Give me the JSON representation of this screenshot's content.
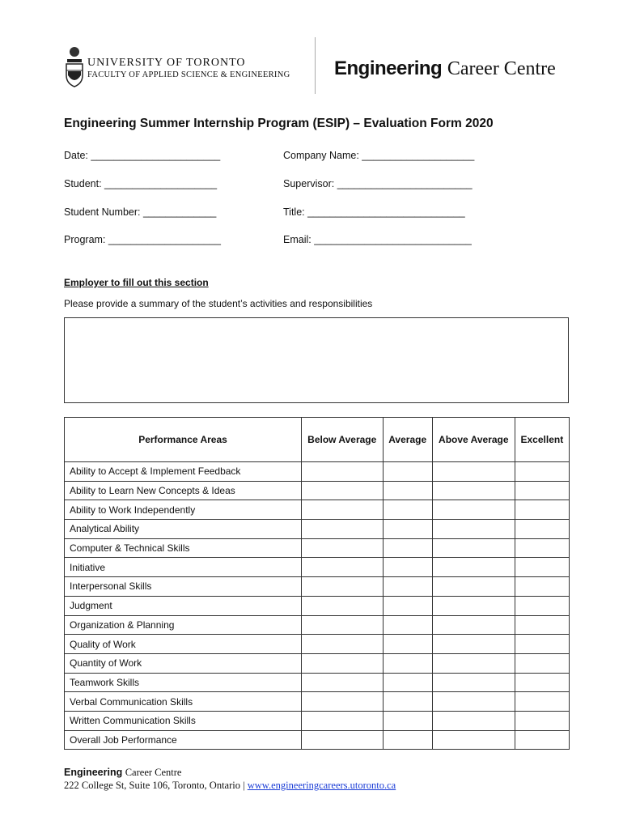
{
  "header": {
    "university": "UNIVERSITY OF TORONTO",
    "faculty": "FACULTY OF APPLIED SCIENCE & ENGINEERING",
    "centre_bold": "Engineering",
    "centre_rest": "Career Centre"
  },
  "form": {
    "title": "Engineering Summer Internship Program (ESIP) – Evaluation Form 2020",
    "fields_left": [
      "Date: _______________________",
      "Student: ____________________",
      "Student Number: _____________",
      "Program: ____________________"
    ],
    "fields_right": [
      "Company Name: ____________________",
      "Supervisor: ________________________",
      "Title: ____________________________",
      "Email: ____________________________"
    ],
    "section_heading": "Employer to fill out this section",
    "summary_prompt": "Please provide a summary of the student’s activities and responsibilities"
  },
  "table": {
    "headers": [
      "Performance Areas",
      "Below Average",
      "Average",
      "Above Average",
      "Excellent"
    ],
    "rows": [
      "Ability to Accept & Implement Feedback",
      "Ability to Learn New Concepts & Ideas",
      "Ability to Work Independently",
      "Analytical Ability",
      "Computer & Technical Skills",
      "Initiative",
      "Interpersonal Skills",
      "Judgment",
      "Organization & Planning",
      "Quality of Work",
      "Quantity of Work",
      "Teamwork Skills",
      "Verbal Communication Skills",
      "Written Communication Skills",
      "Overall Job Performance"
    ]
  },
  "footer": {
    "centre_bold": "Engineering",
    "centre_rest": "Career Centre",
    "address": "222 College St, Suite 106, Toronto, Ontario | ",
    "website": "www.engineeringcareers.utoronto.ca"
  }
}
